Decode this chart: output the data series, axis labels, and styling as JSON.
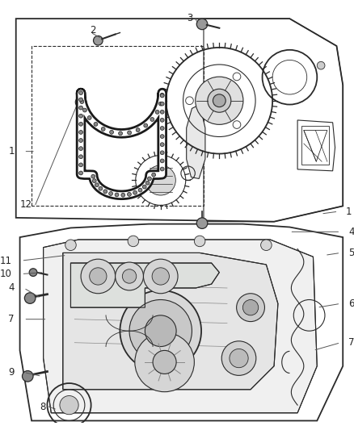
{
  "bg_color": "#ffffff",
  "line_color": "#2a2a2a",
  "label_color": "#222222",
  "font_size": 8.5,
  "figw": 4.38,
  "figh": 5.33,
  "dpi": 100
}
